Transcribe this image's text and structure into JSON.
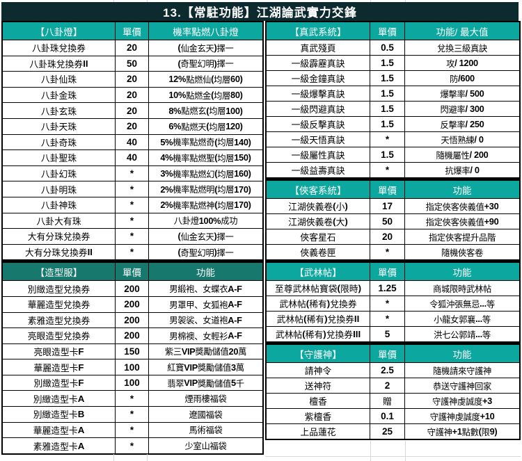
{
  "title": "13.【常駐功能】江湖論武實力交鋒",
  "colors": {
    "title_bg": "#0d2a2e",
    "header_teal": "#0ca79e",
    "header_dark_teal": "#17796e",
    "border": "#000000",
    "header_text": "#ffffff",
    "body_text": "#000000",
    "gridline": "#d7d7d7"
  },
  "left_sections": [
    {
      "id": "bagua-lamp",
      "header": {
        "title": "【八卦燈】",
        "price": "單價",
        "func": "機率點燃八卦燈"
      },
      "rows": [
        [
          "八卦珠兌換券",
          "20",
          "(仙金玄天)擇一"
        ],
        [
          "八卦珠兌換券II",
          "50",
          "(奇聖幻明)擇一"
        ],
        [
          "八卦仙珠",
          "20",
          "12%點燃仙(均層60)"
        ],
        [
          "八卦金珠",
          "20",
          "10%點燃金(均層80)"
        ],
        [
          "八卦玄珠",
          "20",
          "8%點燃玄(均層100)"
        ],
        [
          "八卦天珠",
          "20",
          "6%點燃天(均層120)"
        ],
        [
          "八卦奇珠",
          "40",
          "5%機率點燃奇(均層140)"
        ],
        [
          "八卦聖珠",
          "40",
          "4%機率點燃聖(均層150)"
        ],
        [
          "八卦幻珠",
          "*",
          "3%機率點燃幻(均層160)"
        ],
        [
          "八卦明珠",
          "*",
          "2%機率點燃明(均層170)"
        ],
        [
          "八卦神珠",
          "*",
          "2%機率點燃神(均層170)"
        ],
        [
          "八卦大有珠",
          "*",
          "八卦燈100%成功"
        ],
        [
          "大有分珠兌換券",
          "*",
          "(仙金玄天)擇一"
        ],
        [
          "大有分珠兌換券II",
          "*",
          "(奇聖幻明)擇一"
        ]
      ]
    },
    {
      "id": "costume",
      "dark": true,
      "header": {
        "title": "【造型服】",
        "price": "單價",
        "func": "功能"
      },
      "rows": [
        [
          "別緻造型兌換券",
          "200",
          "男緞袍、女蝶衣 A-F"
        ],
        [
          "華麗造型兌換券",
          "200",
          "男罩甲、女狐袍 A-F"
        ],
        [
          "素雅造型兌換券",
          "200",
          "男袈裟、女道袍 A-F"
        ],
        [
          "亮眼造型兌換券",
          "200",
          "男棉襖、女輕衫 A-F"
        ],
        [
          "亮眼造型卡F",
          "150",
          "紫三VIP獎勵 儲值20萬"
        ],
        [
          "華麗造型卡F",
          "100",
          "紅寶VIP獎勵 儲值3萬"
        ],
        [
          "別緻造型卡F",
          "100",
          "翡翠VIP獎勵 儲值5千"
        ],
        [
          "別緻造型卡A",
          "*",
          "煙雨樓福袋"
        ],
        [
          "別緻造型卡B",
          "*",
          "遼國福袋"
        ],
        [
          "華麗造型卡A",
          "*",
          "馬術福袋"
        ],
        [
          "素雅造型卡A",
          "*",
          "少室山福袋"
        ]
      ]
    }
  ],
  "right_sections": [
    {
      "id": "zhenwu-system",
      "header": {
        "title": "【真武系統】",
        "price": "單價",
        "func": "功能/ 最大值"
      },
      "rows": [
        [
          "真武殘頁",
          "0.5",
          "兌換三級真訣"
        ],
        [
          "一級霹靂真訣",
          "1.5",
          "攻/ 1200"
        ],
        [
          "一級金鐘真訣",
          "1.5",
          "防/600"
        ],
        [
          "一級爆擊真訣",
          "1.5",
          "爆擊率/ 500"
        ],
        [
          "一級閃避真訣",
          "1.5",
          "閃避率/ 300"
        ],
        [
          "一級反擊真訣",
          "1.5",
          "反擊率/ 250"
        ],
        [
          "一級天悟真訣",
          "*",
          "天悟熟練/ 0"
        ],
        [
          "一級屬性真訣",
          "1.5",
          "隨機屬性/ 200"
        ],
        [
          "一級益壽真訣",
          "*",
          "抗爆率/ 0"
        ]
      ]
    },
    {
      "id": "xiake-system",
      "header": {
        "title": "【俠客系統】",
        "price": "單價",
        "func": "功能"
      },
      "rows": [
        [
          "江湖俠義卷(小)",
          "17",
          "指定俠客 俠義值+30"
        ],
        [
          "江湖俠義卷(大)",
          "50",
          "指定俠客 俠義值+90"
        ],
        [
          "俠客星石",
          "20",
          "指定俠客 提升品階"
        ],
        [
          "俠義卷匣",
          "*",
          "隨機俠客卷"
        ]
      ]
    },
    {
      "id": "wulin-tie",
      "header": {
        "title": "【武林帖】",
        "price": "單價",
        "func": "功能"
      },
      "rows": [
        [
          "至尊武林帖寶袋(限時)",
          "1.25",
          "商城限時武林帖"
        ],
        [
          "武林帖(稀有)兌換券",
          "*",
          "令狐沖 張無忌...等"
        ],
        [
          "武林帖(稀有)兌換券II",
          "*",
          "小龍女 郭襄...等"
        ],
        [
          "武林帖(稀有)兌換券III",
          "5",
          "洪七公 郭靖...等"
        ]
      ]
    },
    {
      "id": "guardian",
      "header": {
        "title": "【守護神】",
        "price": "單價",
        "func": "功能"
      },
      "rows": [
        [
          "請神令",
          "2.5",
          "隨機請來守護神"
        ],
        [
          "送神符",
          "2",
          "恭送守護神回家"
        ],
        [
          "檀香",
          "贈",
          "守護神虔誠度+3"
        ],
        [
          "紫檀香",
          "0.1",
          "守護神虔誠度+10"
        ],
        [
          "上品蓮花",
          "25",
          "守護神+1點數(限9)"
        ]
      ]
    }
  ]
}
